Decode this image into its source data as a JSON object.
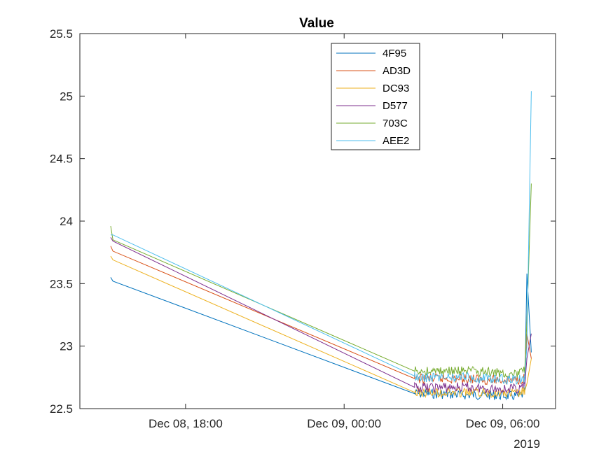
{
  "chart_data": {
    "type": "line",
    "title": "Value",
    "xlabel": "",
    "ylabel": "",
    "x_axis_type": "datetime",
    "x_tick_labels": [
      "Dec 08, 18:00",
      "Dec 09, 00:00",
      "Dec 09, 06:00"
    ],
    "x_ticks": [
      "2019-12-08 18:00",
      "2019-12-09 00:00",
      "2019-12-09 06:00"
    ],
    "x_secondary_label": "2019",
    "xlim": [
      "2019-12-08 14:00",
      "2019-12-09 08:00"
    ],
    "ylim": [
      22.5,
      25.5
    ],
    "y_ticks": [
      22.5,
      23,
      23.5,
      24,
      24.5,
      25,
      25.5
    ],
    "y_tick_labels": [
      "22.5",
      "23",
      "23.5",
      "24",
      "24.5",
      "25",
      "25.5"
    ],
    "grid": false,
    "legend_position": "top-center",
    "series": [
      {
        "name": "4F95",
        "color": "#0072BD",
        "x": [
          "2019-12-08 15:10",
          "2019-12-08 15:15",
          "2019-12-09 02:40",
          "2019-12-09 03:10",
          "2019-12-09 04:40",
          "2019-12-09 05:30",
          "2019-12-09 06:35",
          "2019-12-09 06:50",
          "2019-12-09 06:55",
          "2019-12-09 07:05"
        ],
        "y": [
          23.55,
          23.52,
          22.62,
          22.62,
          22.61,
          22.61,
          22.6,
          22.62,
          23.58,
          22.95
        ]
      },
      {
        "name": "AD3D",
        "color": "#D95319",
        "x": [
          "2019-12-08 15:10",
          "2019-12-08 15:15",
          "2019-12-09 02:40",
          "2019-12-09 03:10",
          "2019-12-09 04:40",
          "2019-12-09 05:30",
          "2019-12-09 06:35",
          "2019-12-09 06:50",
          "2019-12-09 06:55",
          "2019-12-09 07:05"
        ],
        "y": [
          23.8,
          23.76,
          22.74,
          22.74,
          22.74,
          22.73,
          22.73,
          22.75,
          23.1,
          22.9
        ]
      },
      {
        "name": "DC93",
        "color": "#EDB120",
        "x": [
          "2019-12-08 15:10",
          "2019-12-08 15:15",
          "2019-12-09 02:40",
          "2019-12-09 03:10",
          "2019-12-09 04:40",
          "2019-12-09 05:30",
          "2019-12-09 06:35",
          "2019-12-09 06:50",
          "2019-12-09 06:55",
          "2019-12-09 07:05"
        ],
        "y": [
          23.72,
          23.69,
          22.63,
          22.63,
          22.63,
          22.63,
          22.62,
          22.64,
          22.7,
          22.9
        ]
      },
      {
        "name": "D577",
        "color": "#7E2F8E",
        "x": [
          "2019-12-08 15:10",
          "2019-12-08 15:15",
          "2019-12-09 02:40",
          "2019-12-09 03:10",
          "2019-12-09 04:40",
          "2019-12-09 05:30",
          "2019-12-09 06:35",
          "2019-12-09 06:50",
          "2019-12-09 06:55",
          "2019-12-09 07:05"
        ],
        "y": [
          23.87,
          23.84,
          22.67,
          22.67,
          22.67,
          22.66,
          22.66,
          22.68,
          22.9,
          23.1
        ]
      },
      {
        "name": "703C",
        "color": "#77AC30",
        "x": [
          "2019-12-08 15:10",
          "2019-12-08 15:15",
          "2019-12-09 02:40",
          "2019-12-09 03:10",
          "2019-12-09 04:40",
          "2019-12-09 05:30",
          "2019-12-09 06:35",
          "2019-12-09 06:50",
          "2019-12-09 06:55",
          "2019-12-09 07:05"
        ],
        "y": [
          23.96,
          23.85,
          22.8,
          22.8,
          22.8,
          22.79,
          22.78,
          22.8,
          23.2,
          24.3
        ]
      },
      {
        "name": "AEE2",
        "color": "#4DBEEE",
        "x": [
          "2019-12-08 15:10",
          "2019-12-08 15:15",
          "2019-12-09 02:40",
          "2019-12-09 03:10",
          "2019-12-09 04:40",
          "2019-12-09 05:30",
          "2019-12-09 06:35",
          "2019-12-09 06:50",
          "2019-12-09 06:55",
          "2019-12-09 07:05"
        ],
        "y": [
          23.89,
          23.89,
          22.76,
          22.75,
          22.75,
          22.74,
          22.73,
          22.75,
          23.0,
          25.04
        ]
      }
    ]
  }
}
